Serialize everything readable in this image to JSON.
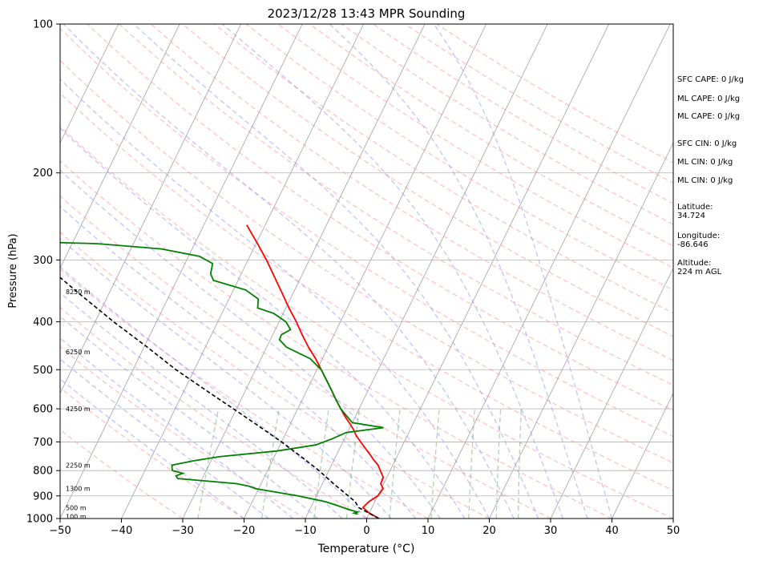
{
  "chart_data": {
    "type": "line",
    "title": "2023/12/28 13:43 MPR Sounding",
    "xlabel": "Temperature (°C)",
    "ylabel": "Pressure (hPa)",
    "xlim": [
      -50,
      50
    ],
    "ylim": [
      1000,
      100
    ],
    "log_y": true,
    "skew_deg_per_decade": 39.5,
    "x_ticks": [
      -50,
      -40,
      -30,
      -20,
      -10,
      0,
      10,
      20,
      30,
      40,
      50
    ],
    "x_tick_labels": [
      "−50",
      "−40",
      "−30",
      "−20",
      "−10",
      "0",
      "10",
      "20",
      "30",
      "40",
      "50"
    ],
    "y_ticks": [
      1000,
      900,
      800,
      700,
      600,
      500,
      400,
      300,
      200,
      100
    ],
    "y_tick_labels": [
      "1000",
      "900",
      "800",
      "700",
      "600",
      "500",
      "400",
      "300",
      "200",
      "100"
    ],
    "grid": true,
    "colors": {
      "temperature": "#ff0000",
      "dewpoint": "#008000",
      "parcel": "#000000",
      "dry_adiabat": "#ff8080",
      "moist_adiabat": "#8080ff",
      "mixing_ratio": "#50a050",
      "isotherm": "#a0a0a0"
    },
    "series": [
      {
        "key": "temperature",
        "values": [
          {
            "p": 1000,
            "t": 2.0
          },
          {
            "p": 975,
            "t": 0.0
          },
          {
            "p": 950,
            "t": -1.5
          },
          {
            "p": 925,
            "t": -1.0
          },
          {
            "p": 900,
            "t": 0.0
          },
          {
            "p": 870,
            "t": 0.3
          },
          {
            "p": 850,
            "t": -0.5
          },
          {
            "p": 825,
            "t": -0.6
          },
          {
            "p": 800,
            "t": -1.6
          },
          {
            "p": 780,
            "t": -2.4
          },
          {
            "p": 760,
            "t": -3.6
          },
          {
            "p": 740,
            "t": -4.7
          },
          {
            "p": 720,
            "t": -5.9
          },
          {
            "p": 700,
            "t": -7.1
          },
          {
            "p": 680,
            "t": -8.3
          },
          {
            "p": 660,
            "t": -9.3
          },
          {
            "p": 640,
            "t": -10.5
          },
          {
            "p": 620,
            "t": -11.8
          },
          {
            "p": 600,
            "t": -13.0
          },
          {
            "p": 575,
            "t": -14.5
          },
          {
            "p": 550,
            "t": -16.0
          },
          {
            "p": 525,
            "t": -17.6
          },
          {
            "p": 500,
            "t": -19.3
          },
          {
            "p": 475,
            "t": -21.1
          },
          {
            "p": 450,
            "t": -23.2
          },
          {
            "p": 425,
            "t": -25.2
          },
          {
            "p": 400,
            "t": -27.2
          },
          {
            "p": 375,
            "t": -29.5
          },
          {
            "p": 350,
            "t": -31.8
          },
          {
            "p": 325,
            "t": -34.3
          },
          {
            "p": 300,
            "t": -37.0
          },
          {
            "p": 280,
            "t": -39.5
          },
          {
            "p": 255,
            "t": -43.0
          }
        ]
      },
      {
        "key": "dewpoint",
        "values": [
          {
            "p": 980,
            "t": -1.8
          },
          {
            "p": 975,
            "t": -2.5
          },
          {
            "p": 970,
            "t": -2.0
          },
          {
            "p": 960,
            "t": -3.5
          },
          {
            "p": 940,
            "t": -6.0
          },
          {
            "p": 925,
            "t": -8.0
          },
          {
            "p": 900,
            "t": -13.0
          },
          {
            "p": 870,
            "t": -20.5
          },
          {
            "p": 860,
            "t": -21.8
          },
          {
            "p": 850,
            "t": -24.0
          },
          {
            "p": 830,
            "t": -34.0
          },
          {
            "p": 820,
            "t": -34.5
          },
          {
            "p": 810,
            "t": -33.6
          },
          {
            "p": 800,
            "t": -35.5
          },
          {
            "p": 790,
            "t": -35.8
          },
          {
            "p": 780,
            "t": -36.0
          },
          {
            "p": 765,
            "t": -33.0
          },
          {
            "p": 750,
            "t": -29.0
          },
          {
            "p": 730,
            "t": -20.0
          },
          {
            "p": 710,
            "t": -14.2
          },
          {
            "p": 690,
            "t": -12.0
          },
          {
            "p": 670,
            "t": -10.2
          },
          {
            "p": 655,
            "t": -4.5
          },
          {
            "p": 640,
            "t": -10.0
          },
          {
            "p": 600,
            "t": -13.0
          },
          {
            "p": 575,
            "t": -14.5
          },
          {
            "p": 550,
            "t": -16.0
          },
          {
            "p": 525,
            "t": -17.6
          },
          {
            "p": 500,
            "t": -19.3
          },
          {
            "p": 475,
            "t": -22.0
          },
          {
            "p": 450,
            "t": -26.8
          },
          {
            "p": 435,
            "t": -28.5
          },
          {
            "p": 425,
            "t": -28.6
          },
          {
            "p": 415,
            "t": -27.5
          },
          {
            "p": 400,
            "t": -28.9
          },
          {
            "p": 385,
            "t": -31.5
          },
          {
            "p": 375,
            "t": -34.6
          },
          {
            "p": 360,
            "t": -35.2
          },
          {
            "p": 345,
            "t": -38.0
          },
          {
            "p": 330,
            "t": -44.0
          },
          {
            "p": 320,
            "t": -45.0
          },
          {
            "p": 305,
            "t": -45.5
          },
          {
            "p": 295,
            "t": -48.2
          },
          {
            "p": 285,
            "t": -55.0
          },
          {
            "p": 278,
            "t": -66.0
          },
          {
            "p": 275,
            "t": -80.0
          }
        ]
      },
      {
        "key": "parcel",
        "values": [
          {
            "p": 1000,
            "t": 2.0
          },
          {
            "p": 975,
            "t": -0.1
          },
          {
            "p": 950,
            "t": -2.2
          },
          {
            "p": 925,
            "t": -3.2
          },
          {
            "p": 900,
            "t": -4.8
          },
          {
            "p": 850,
            "t": -8.2
          },
          {
            "p": 800,
            "t": -11.6
          },
          {
            "p": 750,
            "t": -15.6
          },
          {
            "p": 700,
            "t": -20.0
          },
          {
            "p": 650,
            "t": -25.0
          },
          {
            "p": 600,
            "t": -30.5
          },
          {
            "p": 550,
            "t": -36.5
          },
          {
            "p": 500,
            "t": -43.0
          },
          {
            "p": 450,
            "t": -49.5
          },
          {
            "p": 400,
            "t": -57.0
          },
          {
            "p": 350,
            "t": -65.0
          },
          {
            "p": 300,
            "t": -74.0
          },
          {
            "p": 275,
            "t": -79.0
          }
        ]
      }
    ],
    "height_labels": [
      {
        "p": 348,
        "label": "8250 m"
      },
      {
        "p": 460,
        "label": "6250 m"
      },
      {
        "p": 600,
        "label": "4250 m"
      },
      {
        "p": 780,
        "label": "2250 m"
      },
      {
        "p": 870,
        "label": "1300 m"
      },
      {
        "p": 950,
        "label": "500 m"
      },
      {
        "p": 990,
        "label": "100 m"
      }
    ],
    "stats": [
      {
        "lines": [
          "SFC CAPE: 0 J/kg"
        ]
      },
      {
        "lines": [
          "ML CAPE: 0 J/kg"
        ]
      },
      {
        "lines": [
          "ML CAPE: 0 J/kg"
        ]
      },
      {
        "lines": [
          "SFC CIN: 0 J/kg"
        ]
      },
      {
        "lines": [
          "ML CIN: 0 J/kg"
        ]
      },
      {
        "lines": [
          "ML CIN: 0 J/kg"
        ]
      },
      {
        "lines": [
          "Latitude:",
          "34.724"
        ]
      },
      {
        "lines": [
          "Longitude:",
          "-86.646"
        ]
      },
      {
        "lines": [
          "Altitude:",
          "224 m AGL"
        ]
      }
    ]
  }
}
